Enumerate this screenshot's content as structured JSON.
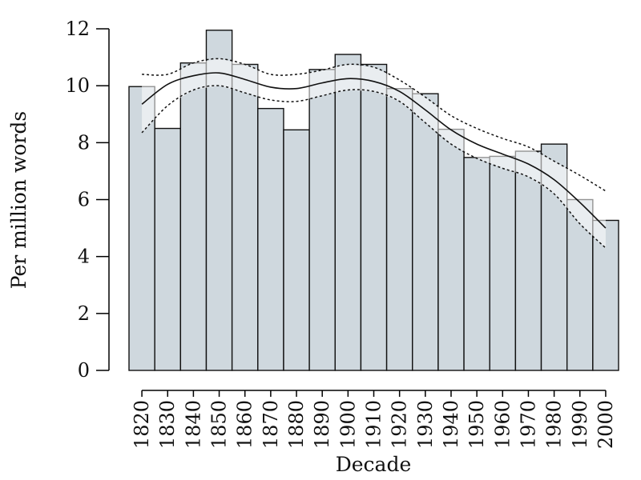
{
  "chart_data": {
    "type": "bar",
    "title": "",
    "xlabel": "Decade",
    "ylabel": "Per million words",
    "categories": [
      "1820",
      "1830",
      "1840",
      "1850",
      "1860",
      "1870",
      "1880",
      "1890",
      "1900",
      "1910",
      "1920",
      "1930",
      "1940",
      "1950",
      "1960",
      "1970",
      "1980",
      "1990",
      "2000"
    ],
    "values": [
      9.97,
      8.5,
      10.8,
      11.95,
      10.75,
      9.2,
      8.45,
      10.57,
      11.1,
      10.75,
      9.9,
      9.72,
      8.47,
      7.48,
      7.52,
      7.7,
      7.95,
      6.0,
      5.27
    ],
    "ylim": [
      0,
      12
    ],
    "yticks": [
      0,
      2,
      4,
      6,
      8,
      10,
      12
    ],
    "series": [
      {
        "type": "smooth",
        "values": [
          9.35,
          10.05,
          10.35,
          10.45,
          10.22,
          9.95,
          9.9,
          10.1,
          10.25,
          10.15,
          9.8,
          9.15,
          8.45,
          7.95,
          7.6,
          7.25,
          6.7,
          5.9,
          5.0
        ]
      },
      {
        "type": "upper-ci",
        "values": [
          10.4,
          10.4,
          10.8,
          10.95,
          10.75,
          10.4,
          10.4,
          10.55,
          10.75,
          10.65,
          10.2,
          9.6,
          8.95,
          8.5,
          8.15,
          7.85,
          7.35,
          6.85,
          6.3
        ]
      },
      {
        "type": "lower-ci",
        "values": [
          8.35,
          9.3,
          9.85,
          10.0,
          9.75,
          9.5,
          9.45,
          9.65,
          9.85,
          9.8,
          9.45,
          8.7,
          7.95,
          7.45,
          7.1,
          6.8,
          6.2,
          5.15,
          4.3
        ]
      }
    ],
    "grid": false,
    "colors": {
      "bar_fill": "#cfd8de",
      "stroke": "#111111"
    }
  }
}
